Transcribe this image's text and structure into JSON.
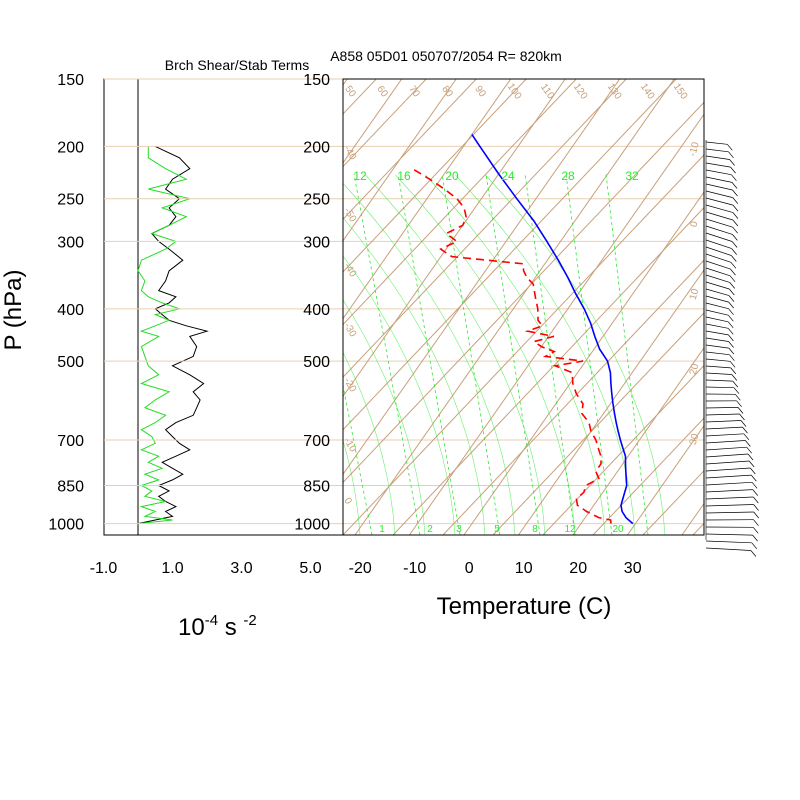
{
  "colors": {
    "frame": "#000000",
    "isotherm": "#c8a07a",
    "isobar": "#e8cfb3",
    "adiabat_label": "#c8a07a",
    "mixing_ratio": "#2ee82e",
    "temperature": "#0000ff",
    "dewpoint": "#ff0000",
    "shear": "#000000",
    "stability": "#22dd22",
    "wind_barb": "#000000"
  },
  "titles": {
    "left_panel": "Brch Shear/Stab Terms",
    "sounding": "A858 05D01 050707/2054 R= 820km"
  },
  "axes": {
    "pressure_label": "P (hPa)",
    "temperature_label": "Temperature (C)",
    "shear_units_base": "10",
    "shear_units_exp1": "-4",
    "shear_units_mid": " s ",
    "shear_units_exp2": "-2"
  },
  "pressure_ticks": [
    "150",
    "200",
    "250",
    "300",
    "400",
    "500",
    "700",
    "850",
    "1000"
  ],
  "shear_ticks": [
    "-1.0",
    "1.0",
    "3.0",
    "5.0"
  ],
  "temperature_ticks": [
    "-20",
    "-10",
    "0",
    "10",
    "20",
    "30"
  ],
  "mixing_ratio_labels": [
    "12",
    "16",
    "20",
    "24",
    "28",
    "32"
  ],
  "bottom_mixing_ratio_labels": [
    "1",
    "2",
    "3",
    "5",
    "8",
    "12",
    "20"
  ],
  "isotherm_labels": [
    "50",
    "60",
    "70",
    "80",
    "90",
    "100",
    "110",
    "120",
    "130",
    "140",
    "150"
  ],
  "side_labels": [
    "-40",
    "-50",
    "-40",
    "-30",
    "-20",
    "-10",
    "0",
    "10",
    "20",
    "30"
  ],
  "chart_data": [
    {
      "type": "line",
      "title": "Brch Shear/Stab Terms",
      "xlabel": "10-4 s -2",
      "ylabel": "P (hPa)",
      "xlim": [
        -1.0,
        5.0
      ],
      "ylim": [
        1050,
        150
      ],
      "y_scale": "log-pressure",
      "series": [
        {
          "pressure": [
            1000,
            985,
            970,
            950,
            930,
            910,
            890,
            870,
            850,
            830,
            810,
            790,
            770,
            750,
            730,
            710,
            690,
            670,
            650,
            630,
            610,
            590,
            570,
            550,
            530,
            510,
            490,
            470,
            450,
            440,
            430,
            420,
            410,
            400,
            390,
            380,
            370,
            355,
            340,
            325,
            310,
            300,
            290,
            280,
            270,
            260,
            250,
            240,
            230,
            220,
            210,
            200
          ],
          "values": [
            0.0,
            0.5,
            1.0,
            0.8,
            1.1,
            0.8,
            0.6,
            0.9,
            0.6,
            1.0,
            1.3,
            1.0,
            0.7,
            1.1,
            1.5,
            1.2,
            1.0,
            0.8,
            1.1,
            1.6,
            1.7,
            1.8,
            1.6,
            1.9,
            1.5,
            1.0,
            1.6,
            1.7,
            1.5,
            2.0,
            1.4,
            0.9,
            0.7,
            0.5,
            0.9,
            1.1,
            0.6,
            0.8,
            0.9,
            1.3,
            0.9,
            0.6,
            0.4,
            0.9,
            1.1,
            0.9,
            1.2,
            0.8,
            1.0,
            1.5,
            1.2,
            0.5
          ]
        },
        {
          "pressure": [
            1000,
            985,
            970,
            950,
            930,
            910,
            890,
            870,
            850,
            830,
            810,
            790,
            770,
            750,
            730,
            710,
            690,
            670,
            650,
            630,
            610,
            590,
            570,
            550,
            530,
            510,
            490,
            470,
            450,
            440,
            430,
            420,
            410,
            400,
            390,
            380,
            370,
            355,
            340,
            325,
            310,
            300,
            290,
            280,
            270,
            260,
            250,
            240,
            230,
            220,
            210,
            200
          ],
          "values": [
            0.0,
            1.0,
            0.2,
            0.5,
            0.1,
            0.8,
            0.2,
            0.4,
            0.1,
            0.6,
            0.2,
            0.7,
            0.3,
            0.6,
            0.1,
            0.5,
            0.4,
            0.1,
            0.5,
            0.8,
            0.2,
            0.5,
            0.9,
            0.1,
            0.6,
            0.3,
            0.2,
            0.1,
            0.6,
            0.1,
            0.5,
            0.9,
            0.5,
            1.2,
            0.7,
            0.3,
            0.1,
            0.2,
            0.0,
            0.1,
            0.8,
            1.1,
            0.4,
            0.9,
            1.4,
            0.7,
            1.5,
            0.3,
            1.4,
            0.8,
            0.3,
            0.3
          ]
        }
      ]
    },
    {
      "type": "line",
      "title": "A858 05D01 050707/2054 R= 820km",
      "xlabel": "Temperature (C)",
      "ylabel": "P (hPa)",
      "xlim": [
        -23,
        40
      ],
      "ylim": [
        1050,
        150
      ],
      "y_scale": "log-pressure",
      "skew": true,
      "series": [
        {
          "pressure": [
            1000,
            975,
            950,
            925,
            900,
            875,
            850,
            825,
            800,
            775,
            750,
            725,
            700,
            675,
            650,
            625,
            600,
            575,
            550,
            525,
            500,
            475,
            450,
            425,
            400,
            375,
            350,
            325,
            300,
            275,
            250,
            225,
            200,
            190
          ],
          "values": [
            29.5,
            27.5,
            26.0,
            25.0,
            24.5,
            24.0,
            23.5,
            22.5,
            21.5,
            20.5,
            19.5,
            18.0,
            16.5,
            15.0,
            13.5,
            12.0,
            10.5,
            9.0,
            7.5,
            6.0,
            4.0,
            1.0,
            -1.5,
            -4.0,
            -7.0,
            -10.5,
            -14.0,
            -18.0,
            -22.5,
            -27.5,
            -33.5,
            -40.0,
            -47.0,
            -50.0
          ]
        },
        {
          "pressure": [
            1000,
            985,
            975,
            950,
            925,
            900,
            875,
            850,
            825,
            800,
            775,
            750,
            725,
            700,
            675,
            650,
            625,
            600,
            575,
            550,
            525,
            510,
            500,
            490,
            480,
            470,
            460,
            450,
            440,
            430,
            420,
            400,
            380,
            360,
            350,
            340,
            330,
            320,
            310,
            300,
            290,
            280,
            270,
            260,
            250,
            240,
            230,
            220
          ],
          "values": [
            25.5,
            25.0,
            22.5,
            19.5,
            17.0,
            16.0,
            16.5,
            16.0,
            17.5,
            16.0,
            16.0,
            15.0,
            13.5,
            12.0,
            10.0,
            8.5,
            6.0,
            5.0,
            2.5,
            0.5,
            -1.0,
            -5.0,
            -0.5,
            -8.0,
            -7.0,
            -10.0,
            -12.0,
            -9.0,
            -14.5,
            -12.5,
            -14.0,
            -15.5,
            -17.5,
            -19.5,
            -21.5,
            -23.0,
            -24.0,
            -38.0,
            -41.0,
            -39.0,
            -42.0,
            -40.0,
            -40.5,
            -42.0,
            -44.5,
            -48.0,
            -52.0,
            -56.5
          ]
        }
      ]
    }
  ]
}
